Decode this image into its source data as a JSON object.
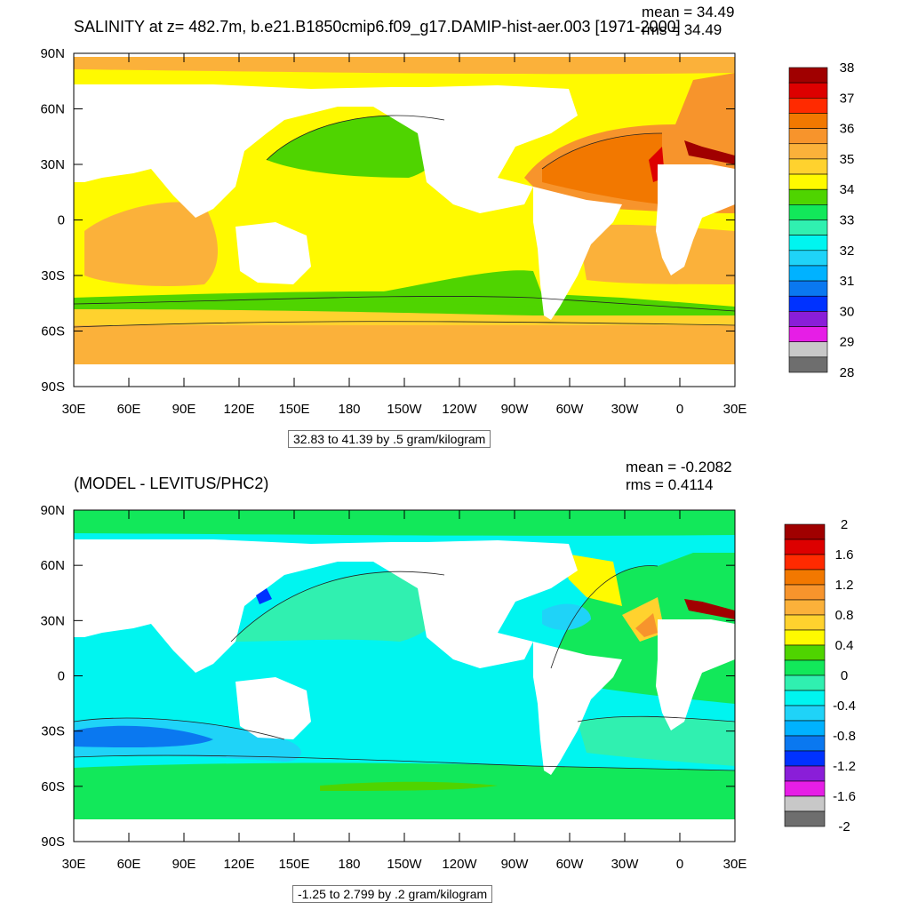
{
  "panels": [
    {
      "title": "SALINITY at z= 482.7m, b.e21.B1850cmip6.f09_g17.DAMIP-hist-aer.003 [1971-2000]",
      "stats": {
        "mean": "mean = 34.49",
        "rms": "rms = 34.49"
      },
      "contour_info": "32.83 to 41.39 by .5 gram/kilogram",
      "colorbar": {
        "labels": [
          "38",
          "37",
          "36",
          "35",
          "34",
          "33",
          "32",
          "31",
          "30",
          "29",
          "28"
        ],
        "colors": [
          "#a00000",
          "#dd0000",
          "#ff2a00",
          "#f27800",
          "#f7942c",
          "#fbb13a",
          "#ffd22e",
          "#fffa00",
          "#4fd400",
          "#12e85a",
          "#30f0b0",
          "#00f5f0",
          "#1fd3f8",
          "#00b2ff",
          "#0a78f0",
          "#0032ff",
          "#8a1ed8",
          "#e61ee6",
          "#c8c8c8",
          "#6e6e6e"
        ]
      },
      "chart_data": {
        "type": "heatmap",
        "title": "SALINITY at z= 482.7m",
        "x_ticks": [
          "30E",
          "60E",
          "90E",
          "120E",
          "150E",
          "180",
          "150W",
          "120W",
          "90W",
          "60W",
          "30W",
          "0",
          "30E"
        ],
        "y_ticks": [
          "90N",
          "60N",
          "30N",
          "0",
          "30S",
          "60S",
          "90S"
        ],
        "value_range": [
          28,
          38
        ],
        "contour_interval": 0.5,
        "units": "gram/kilogram",
        "mean": 34.49,
        "rms": 34.49
      }
    },
    {
      "title": "(MODEL - LEVITUS/PHC2)",
      "stats": {
        "mean": "mean = -0.2082",
        "rms": "rms = 0.4114"
      },
      "contour_info": "-1.25 to 2.799 by .2 gram/kilogram",
      "colorbar": {
        "labels": [
          "2",
          "1.6",
          "1.2",
          "0.8",
          "0.4",
          "0",
          "-0.4",
          "-0.8",
          "-1.2",
          "-1.6",
          "-2"
        ],
        "colors": [
          "#a00000",
          "#dd0000",
          "#ff2a00",
          "#f27800",
          "#f7942c",
          "#fbb13a",
          "#ffd22e",
          "#fffa00",
          "#4fd400",
          "#12e85a",
          "#30f0b0",
          "#00f5f0",
          "#1fd3f8",
          "#00b2ff",
          "#0a78f0",
          "#0032ff",
          "#8a1ed8",
          "#e61ee6",
          "#c8c8c8",
          "#6e6e6e"
        ]
      },
      "chart_data": {
        "type": "heatmap",
        "title": "(MODEL - LEVITUS/PHC2)",
        "x_ticks": [
          "30E",
          "60E",
          "90E",
          "120E",
          "150E",
          "180",
          "150W",
          "120W",
          "90W",
          "60W",
          "30W",
          "0",
          "30E"
        ],
        "y_ticks": [
          "90N",
          "60N",
          "30N",
          "0",
          "30S",
          "60S",
          "90S"
        ],
        "value_range": [
          -2,
          2
        ],
        "contour_interval": 0.2,
        "units": "gram/kilogram",
        "mean": -0.2082,
        "rms": 0.4114
      }
    }
  ]
}
